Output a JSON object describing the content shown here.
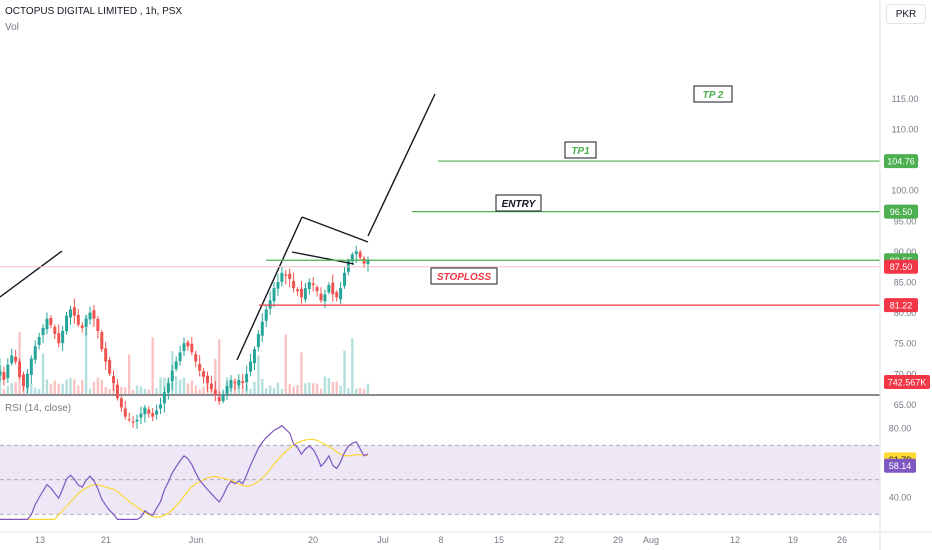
{
  "header": {
    "title": "OCTOPUS DIGITAL LIMITED , 1h, PSX",
    "volume_label": "Vol",
    "rsi_label": "RSI (14, close)",
    "currency": "PKR"
  },
  "colors": {
    "up": "#26a69a",
    "down": "#ef5350",
    "levels_green": "#4caf50",
    "stoploss_red": "#f23645",
    "rsi_line": "#7e57c2",
    "rsi_ma": "#fdd835",
    "rsi_band": "#ede7f6",
    "axis_text": "#787b86"
  },
  "chart_data": [
    {
      "type": "candlestick",
      "x_ticks": [
        "13",
        "21",
        "Jun",
        "20",
        "Jul",
        "8",
        "15",
        "22",
        "29",
        "Aug",
        "12",
        "19",
        "26"
      ],
      "y_ticks": [
        65.0,
        70.0,
        75.0,
        80.0,
        85.0,
        90.0,
        95.0,
        100.0,
        105.0,
        110.0,
        115.0
      ],
      "ylim": [
        61.5,
        117
      ],
      "grid": false,
      "price_labels": [
        {
          "text": "104.76",
          "value": 104.76,
          "color": "#4caf50"
        },
        {
          "text": "96.50",
          "value": 96.5,
          "color": "#4caf50"
        },
        {
          "text": "88.55",
          "value": 88.55,
          "color": "#4caf50"
        },
        {
          "text": "87.50",
          "value": 87.5,
          "color": "#f23645"
        },
        {
          "text": "81.22",
          "value": 81.22,
          "color": "#f23645"
        }
      ],
      "volume_label": {
        "text": "742.567K",
        "color": "#f23645"
      },
      "annotations": [
        {
          "text": "TP 2",
          "value": 104.76,
          "color": "#4caf50"
        },
        {
          "text": "TP1",
          "value": 96.5,
          "color": "#4caf50"
        },
        {
          "text": "ENTRY",
          "value": 88.55,
          "color": "#131722"
        },
        {
          "text": "STOPLOSS",
          "value": 81.22,
          "color": "#f23645"
        }
      ],
      "closes": [
        70.5,
        69.0,
        71.5,
        73.0,
        72.0,
        69.5,
        68.0,
        70.0,
        72.5,
        74.5,
        76.0,
        77.5,
        79.0,
        78.0,
        76.5,
        75.0,
        77.0,
        79.5,
        80.5,
        79.5,
        78.0,
        77.5,
        79.0,
        80.0,
        79.0,
        77.0,
        74.0,
        72.0,
        70.0,
        68.5,
        66.0,
        64.5,
        63.0,
        62.5,
        62.0,
        62.5,
        63.5,
        64.5,
        63.5,
        63.0,
        64.0,
        65.0,
        67.0,
        68.5,
        70.5,
        72.0,
        73.5,
        75.0,
        74.5,
        73.5,
        72.0,
        70.5,
        69.5,
        68.5,
        67.5,
        66.5,
        65.5,
        66.5,
        68.0,
        69.0,
        68.5,
        69.0,
        68.5,
        70.0,
        72.0,
        74.0,
        76.5,
        78.5,
        80.5,
        82.0,
        84.0,
        85.0,
        86.5,
        86.0,
        85.5,
        84.0,
        83.5,
        82.5,
        84.0,
        85.0,
        84.5,
        83.5,
        82.0,
        83.0,
        84.5,
        83.0,
        82.5,
        84.0,
        86.5,
        88.5,
        89.5,
        90.0,
        89.0,
        88.0,
        88.5
      ]
    },
    {
      "type": "line",
      "title": "RSI (14, close)",
      "y_ticks": [
        40.0,
        80.0
      ],
      "ylim": [
        27,
        88
      ],
      "band": [
        30,
        70
      ],
      "mid": 50,
      "value_labels": [
        {
          "text": "61.79",
          "value": 61.79,
          "color": "#fdd835"
        },
        {
          "text": "58.14",
          "value": 58.14,
          "color": "#7e57c2"
        }
      ]
    }
  ]
}
